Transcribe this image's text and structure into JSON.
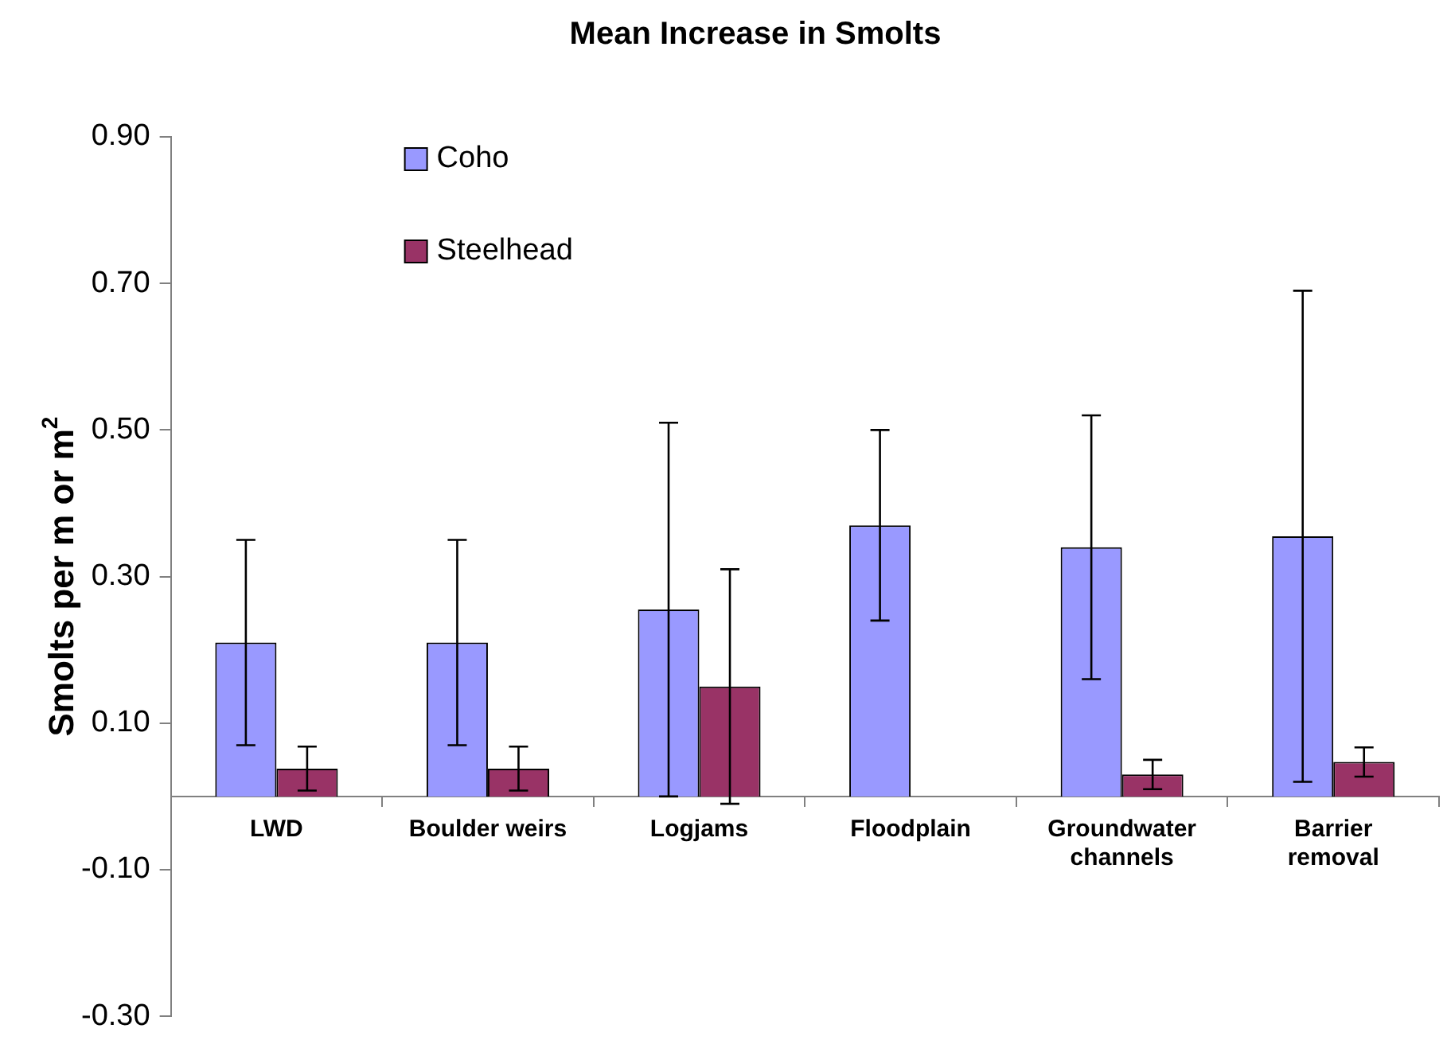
{
  "chart_data": {
    "type": "bar",
    "title": "Mean Increase in Smolts",
    "ylabel": "Smolts per m or m$^{2}$",
    "categories": [
      "LWD",
      "Boulder weirs",
      "Logjams",
      "Floodplain",
      "Groundwater channels",
      "Barrier removal"
    ],
    "series": [
      {
        "name": "Coho",
        "color": "#9999ff",
        "values": [
          0.21,
          0.21,
          0.255,
          0.37,
          0.34,
          0.355
        ],
        "errors": [
          0.14,
          0.14,
          0.255,
          0.13,
          0.18,
          0.335
        ]
      },
      {
        "name": "Steelhead",
        "color": "#993366",
        "values": [
          0.038,
          0.038,
          0.15,
          0,
          0.03,
          0.047
        ],
        "errors": [
          0.03,
          0.03,
          0.16,
          null,
          0.02,
          0.02
        ]
      }
    ],
    "ylim": [
      -0.3,
      0.9
    ],
    "yticks": [
      {
        "value": -0.3,
        "label": "-0.30"
      },
      {
        "value": -0.1,
        "label": "-0.10"
      },
      {
        "value": 0.1,
        "label": "0.10"
      },
      {
        "value": 0.3,
        "label": "0.30"
      },
      {
        "value": 0.5,
        "label": "0.50"
      },
      {
        "value": 0.7,
        "label": "0.70"
      },
      {
        "value": 0.9,
        "label": "0.90"
      }
    ],
    "grid": false,
    "legend": "top left"
  }
}
